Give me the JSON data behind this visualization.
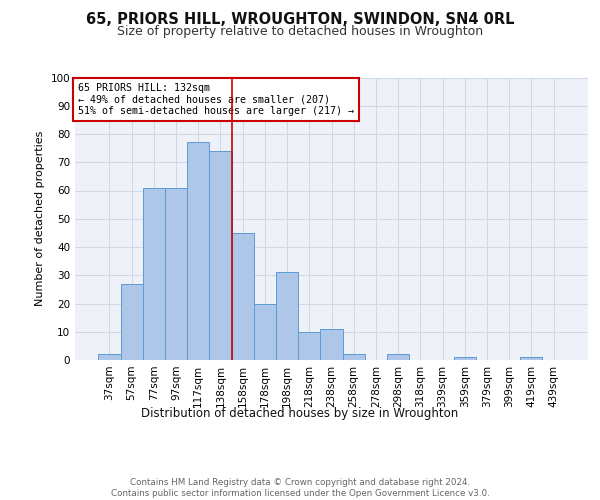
{
  "title1": "65, PRIORS HILL, WROUGHTON, SWINDON, SN4 0RL",
  "title2": "Size of property relative to detached houses in Wroughton",
  "xlabel": "Distribution of detached houses by size in Wroughton",
  "ylabel": "Number of detached properties",
  "bar_labels": [
    "37sqm",
    "57sqm",
    "77sqm",
    "97sqm",
    "117sqm",
    "138sqm",
    "158sqm",
    "178sqm",
    "198sqm",
    "218sqm",
    "238sqm",
    "258sqm",
    "278sqm",
    "298sqm",
    "318sqm",
    "339sqm",
    "359sqm",
    "379sqm",
    "399sqm",
    "419sqm",
    "439sqm"
  ],
  "bar_values": [
    2,
    27,
    61,
    61,
    77,
    74,
    45,
    20,
    31,
    10,
    11,
    2,
    0,
    2,
    0,
    0,
    1,
    0,
    0,
    1,
    0
  ],
  "bar_color": "#aec6e8",
  "bar_edge_color": "#5b9bd5",
  "grid_color": "#d0d8e8",
  "background_color": "#eef2f8",
  "vline_x": 5.5,
  "vline_color": "#cc0000",
  "annotation_text": "65 PRIORS HILL: 132sqm\n← 49% of detached houses are smaller (207)\n51% of semi-detached houses are larger (217) →",
  "annotation_box_color": "#ffffff",
  "annotation_box_edge": "#cc0000",
  "footer_text": "Contains HM Land Registry data © Crown copyright and database right 2024.\nContains public sector information licensed under the Open Government Licence v3.0.",
  "ylim": [
    0,
    100
  ]
}
